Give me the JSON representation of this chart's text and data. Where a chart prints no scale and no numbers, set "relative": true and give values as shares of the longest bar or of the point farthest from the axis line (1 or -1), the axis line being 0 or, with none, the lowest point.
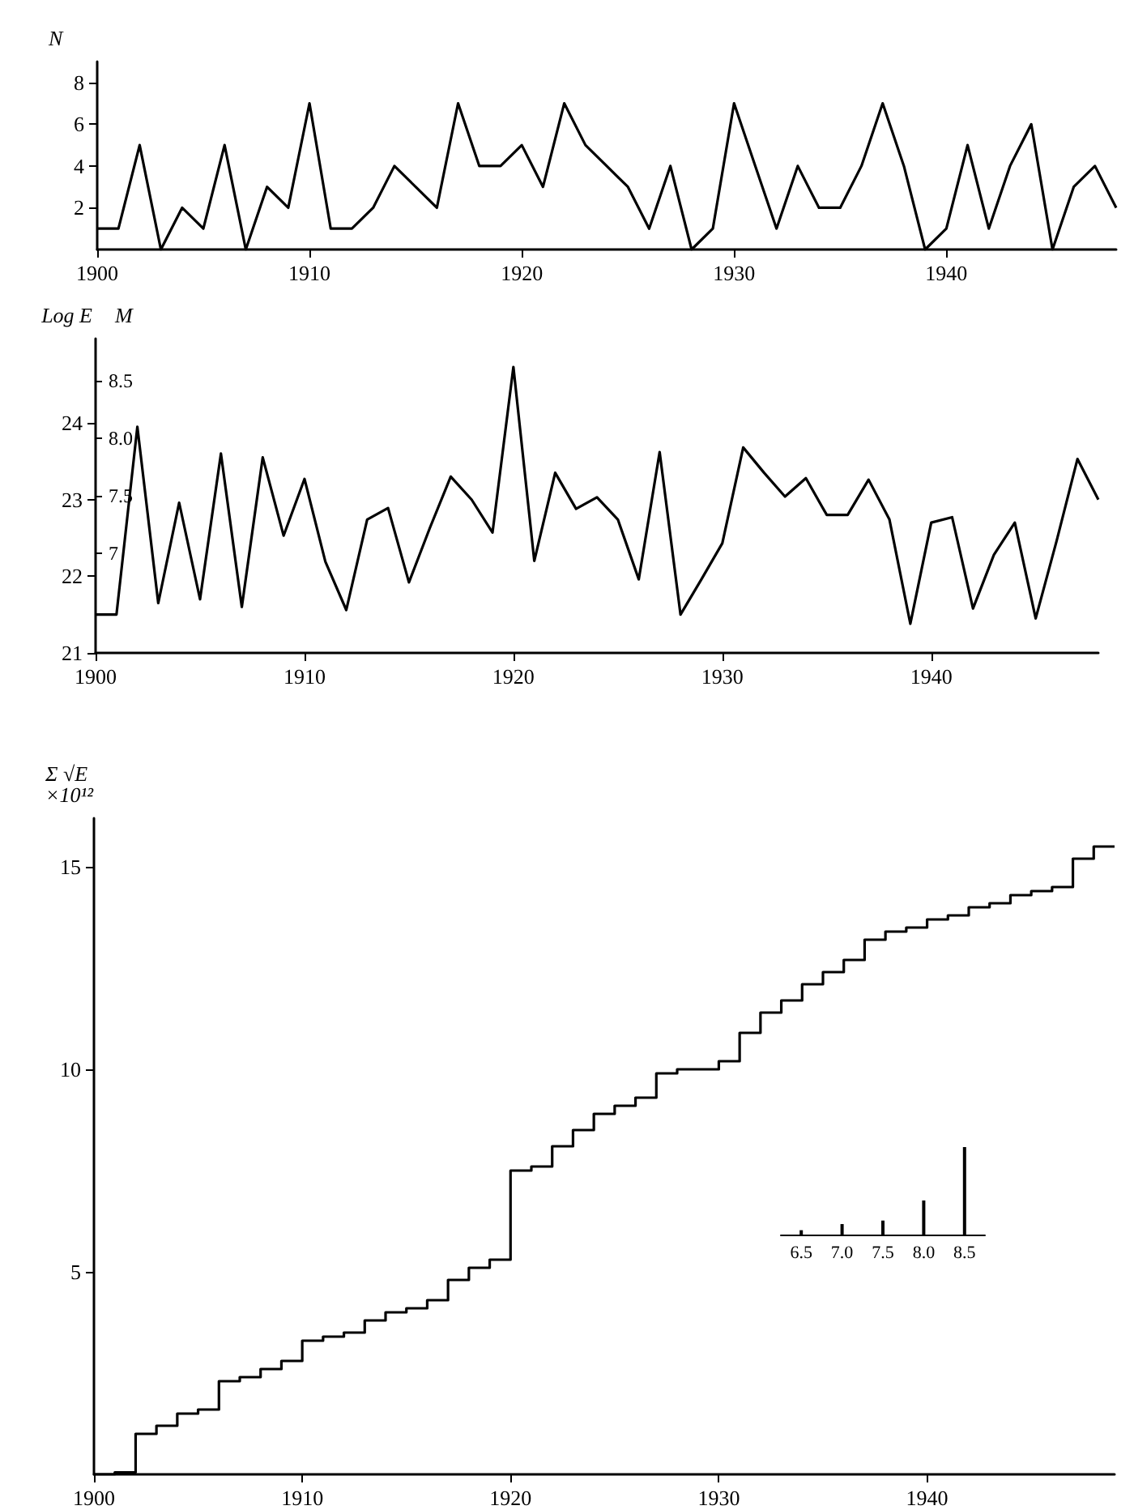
{
  "chart_data": [
    {
      "type": "line",
      "ylabel": "N",
      "x": [
        1900,
        1901,
        1902,
        1903,
        1904,
        1905,
        1906,
        1907,
        1908,
        1909,
        1910,
        1911,
        1912,
        1913,
        1914,
        1915,
        1916,
        1917,
        1918,
        1919,
        1920,
        1921,
        1922,
        1923,
        1924,
        1925,
        1926,
        1927,
        1928,
        1929,
        1930,
        1931,
        1932,
        1933,
        1934,
        1935,
        1936,
        1937,
        1938,
        1939,
        1940,
        1941,
        1942,
        1943,
        1944,
        1945,
        1946,
        1947,
        1948
      ],
      "values": [
        1,
        1,
        5,
        0,
        2,
        1,
        5,
        0,
        3,
        2,
        7,
        1,
        1,
        2,
        4,
        3,
        2,
        7,
        4,
        4,
        5,
        3,
        7,
        5,
        4,
        3,
        1,
        4,
        0,
        1,
        7,
        4,
        1,
        4,
        2,
        2,
        4,
        7,
        4,
        0,
        1,
        5,
        1,
        4,
        6,
        0,
        3,
        4,
        2
      ],
      "color": "#000000",
      "xlim": [
        1900,
        1948
      ],
      "xticks": [
        1900,
        1910,
        1920,
        1930,
        1940
      ],
      "ylim": [
        0,
        9
      ],
      "yticks": [
        2,
        4,
        6,
        8
      ]
    },
    {
      "type": "line",
      "ylabel": "Log E",
      "y2label": "M",
      "x": [
        1900,
        1901,
        1902,
        1903,
        1904,
        1905,
        1906,
        1907,
        1908,
        1909,
        1910,
        1911,
        1912,
        1913,
        1914,
        1915,
        1916,
        1917,
        1918,
        1919,
        1920,
        1921,
        1922,
        1923,
        1924,
        1925,
        1926,
        1927,
        1928,
        1929,
        1930,
        1931,
        1932,
        1933,
        1934,
        1935,
        1936,
        1937,
        1938,
        1939,
        1940,
        1941,
        1942,
        1943,
        1944,
        1945,
        1946,
        1947,
        1948
      ],
      "values": [
        21.5,
        21.5,
        23.95,
        21.65,
        22.96,
        21.7,
        23.6,
        21.6,
        23.55,
        22.53,
        23.27,
        22.19,
        21.56,
        22.74,
        22.89,
        21.92,
        22.63,
        23.3,
        23.0,
        22.57,
        24.73,
        22.2,
        23.35,
        22.88,
        23.03,
        22.74,
        21.96,
        23.62,
        21.5,
        21.96,
        22.43,
        23.68,
        23.35,
        23.04,
        23.28,
        22.8,
        22.8,
        23.26,
        22.74,
        21.38,
        22.7,
        22.77,
        21.58,
        22.28,
        22.7,
        21.45,
        22.46,
        23.53,
        23.0
      ],
      "color": "#000000",
      "xlim": [
        1900,
        1948
      ],
      "xticks": [
        1900,
        1910,
        1920,
        1930,
        1940
      ],
      "ylim": [
        21,
        25.1
      ],
      "yticks": [
        21,
        22,
        23,
        24
      ],
      "y2lim": [
        6.133,
        8.867
      ],
      "y2ticks": [
        7,
        7.5,
        {
          "value": 8,
          "label": "8.0"
        },
        8.5
      ]
    },
    {
      "type": "step",
      "ylabel": "Σ √E\n×10¹²",
      "x": [
        1900,
        1901,
        1902,
        1903,
        1904,
        1905,
        1906,
        1907,
        1908,
        1909,
        1910,
        1911,
        1912,
        1913,
        1914,
        1915,
        1916,
        1917,
        1918,
        1919,
        1920,
        1921,
        1922,
        1923,
        1924,
        1925,
        1926,
        1927,
        1928,
        1929,
        1930,
        1931,
        1932,
        1933,
        1934,
        1935,
        1936,
        1937,
        1938,
        1939,
        1940,
        1941,
        1942,
        1943,
        1944,
        1945,
        1946,
        1947,
        1948,
        1949
      ],
      "values": [
        0,
        0.05,
        1.0,
        1.2,
        1.5,
        1.6,
        2.3,
        2.4,
        2.6,
        2.8,
        3.3,
        3.4,
        3.5,
        3.8,
        4.0,
        4.1,
        4.3,
        4.8,
        5.1,
        5.3,
        7.5,
        7.6,
        8.1,
        8.5,
        8.9,
        9.1,
        9.3,
        9.9,
        10.0,
        10.0,
        10.2,
        10.9,
        11.4,
        11.7,
        12.1,
        12.4,
        12.7,
        13.2,
        13.4,
        13.5,
        13.7,
        13.8,
        14.0,
        14.1,
        14.3,
        14.4,
        14.5,
        15.2,
        15.5,
        15.5
      ],
      "color": "#000000",
      "xlim": [
        1900,
        1949
      ],
      "xticks": [
        1900,
        1910,
        1920,
        1930,
        1940
      ],
      "ylim": [
        0,
        16.2
      ],
      "yticks": [
        5,
        10,
        15
      ]
    },
    {
      "type": "bar",
      "categories": [
        "6.5",
        "7.0",
        "7.5",
        "8.0",
        "8.5"
      ],
      "values": [
        0.05,
        0.12,
        0.16,
        0.39,
        1
      ],
      "relative": true,
      "color": "#000000"
    }
  ]
}
